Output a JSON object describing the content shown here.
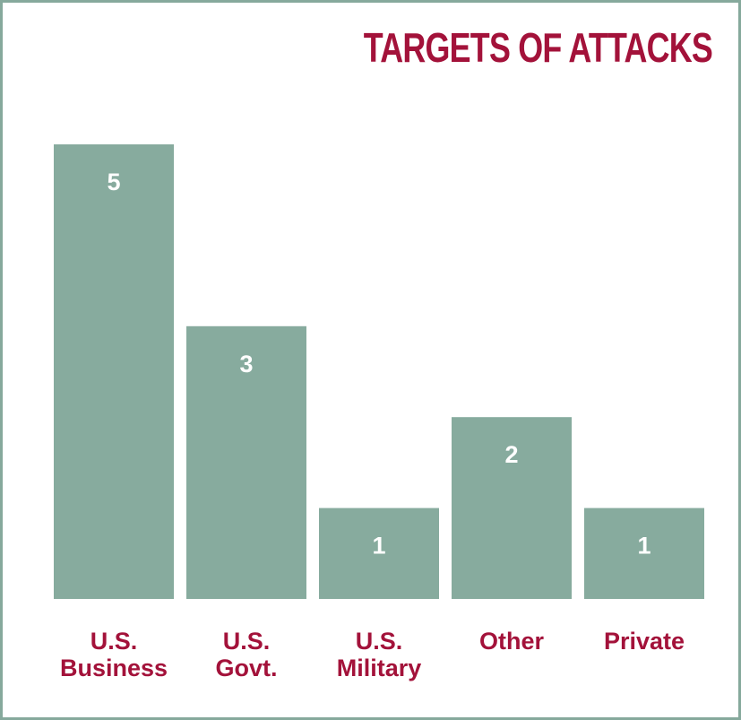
{
  "chart_data": {
    "type": "bar",
    "title": "TARGETS OF ATTACKS",
    "categories": [
      [
        "U.S.",
        "Business"
      ],
      [
        "U.S.",
        "Govt."
      ],
      [
        "U.S.",
        "Military"
      ],
      [
        "Other"
      ],
      [
        "Private"
      ]
    ],
    "values": [
      5,
      3,
      1,
      2,
      1
    ],
    "value_labels": [
      "5",
      "3",
      "1",
      "2",
      "1"
    ],
    "ylim": [
      0,
      5
    ],
    "grid": false,
    "legend": "none",
    "colors": {
      "bar": "#87ab9e",
      "frame": "#86a99c",
      "title": "#a3123a",
      "label": "#a3123a",
      "value_text": "#ffffff"
    }
  }
}
